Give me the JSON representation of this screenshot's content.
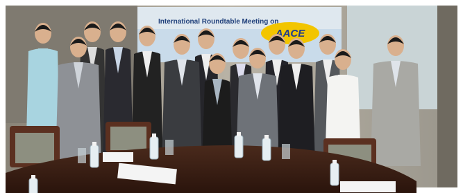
{
  "banner": {
    "title": "International Roundtable Meeting on",
    "logo": "AACE"
  }
}
